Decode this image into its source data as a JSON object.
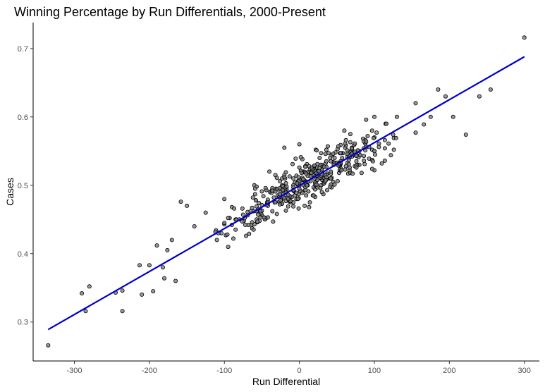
{
  "chart_data": {
    "type": "scatter",
    "title": "Winning Percentage by Run Differentials, 2000-Present",
    "xlabel": "Run Differential",
    "ylabel": "Cases",
    "xlim": [
      -355,
      320
    ],
    "ylim": [
      0.243,
      0.738
    ],
    "xticks": [
      -300,
      -200,
      -100,
      0,
      100,
      200,
      300
    ],
    "yticks": [
      0.3,
      0.4,
      0.5,
      0.6,
      0.7
    ],
    "xtick_labels": [
      "-300",
      "-200",
      "-100",
      "0",
      "100",
      "200",
      "300"
    ],
    "ytick_labels": [
      "0.3",
      "0.4",
      "0.5",
      "0.6",
      "0.7"
    ],
    "grid": false,
    "point_color": "#808080",
    "point_opacity": 0.8,
    "fit_line_color": "#0000cc",
    "fit_line": {
      "x": [
        -335,
        300
      ],
      "y": [
        0.289,
        0.688
      ]
    },
    "points": {
      "x": [
        -335,
        -290,
        -285,
        -280,
        -245,
        -236,
        -236,
        -213,
        -210,
        -200,
        -195,
        -190,
        -182,
        -180,
        -176,
        -170,
        -165,
        -158,
        -150,
        -140,
        -125,
        -110,
        -100,
        -85,
        -60,
        -40,
        -25,
        -20,
        0,
        30,
        60,
        80,
        100,
        115,
        130,
        155,
        175,
        185,
        195,
        205,
        222,
        240,
        255,
        300
      ],
      "y": [
        0.266,
        0.342,
        0.316,
        0.352,
        0.343,
        0.316,
        0.346,
        0.383,
        0.34,
        0.383,
        0.345,
        0.412,
        0.38,
        0.364,
        0.405,
        0.42,
        0.36,
        0.476,
        0.47,
        0.44,
        0.46,
        0.42,
        0.48,
        0.45,
        0.5,
        0.52,
        0.49,
        0.555,
        0.56,
        0.53,
        0.58,
        0.53,
        0.57,
        0.59,
        0.6,
        0.62,
        0.6,
        0.64,
        0.63,
        0.6,
        0.574,
        0.63,
        0.64,
        0.716
      ]
    }
  }
}
